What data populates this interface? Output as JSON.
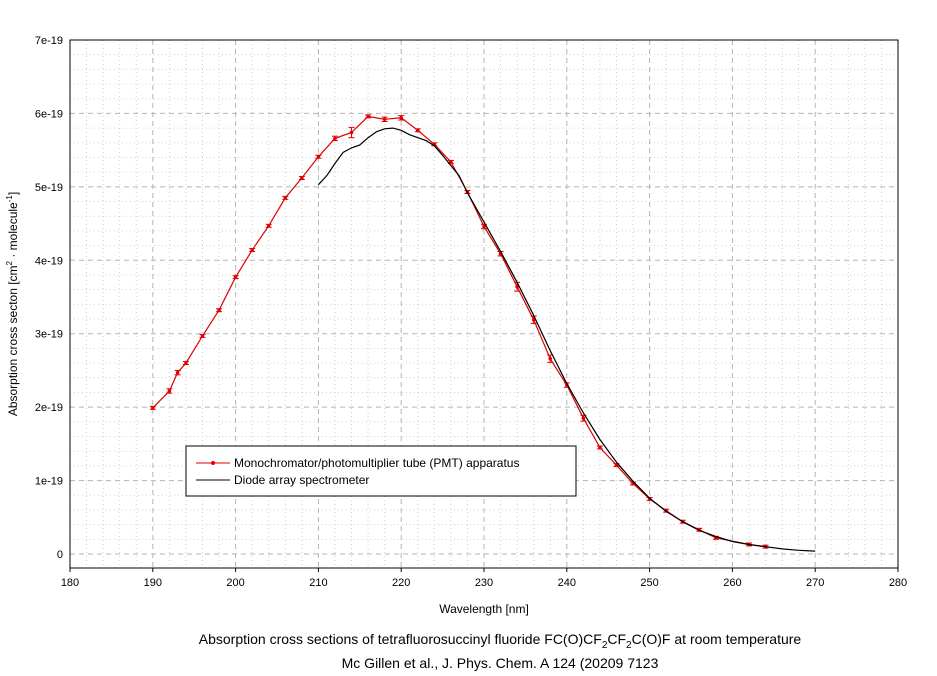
{
  "chart_data": {
    "type": "line",
    "xlabel": "Wavelength [nm]",
    "ylabel_parts": [
      "Absorption cross secton [cm",
      "2",
      " · molecule",
      "-1",
      "]"
    ],
    "xlim": [
      180,
      280
    ],
    "ylim": [
      0,
      7e-19
    ],
    "x_ticks": [
      "180",
      "190",
      "200",
      "210",
      "220",
      "230",
      "240",
      "250",
      "260",
      "270",
      "280"
    ],
    "y_ticks": [
      "0",
      "1e-19",
      "2e-19",
      "3e-19",
      "4e-19",
      "5e-19",
      "6e-19",
      "7e-19"
    ],
    "grid": true,
    "legend_position": "center-left",
    "series": [
      {
        "name": "Monochromator/photomultiplier tube (PMT) apparatus",
        "color": "#e00000",
        "marker": "dot-errorbar",
        "x": [
          190,
          192,
          193,
          194,
          196,
          198,
          200,
          202,
          204,
          206,
          208,
          210,
          212,
          214,
          216,
          218,
          220,
          222,
          224,
          226,
          228,
          230,
          232,
          234,
          236,
          238,
          240,
          242,
          244,
          246,
          248,
          250,
          252,
          254,
          256,
          258,
          262,
          264
        ],
        "y": [
          1.99,
          2.22,
          2.47,
          2.6,
          2.97,
          3.32,
          3.77,
          4.14,
          4.47,
          4.85,
          5.12,
          5.41,
          5.66,
          5.74,
          5.96,
          5.92,
          5.94,
          5.77,
          5.58,
          5.34,
          4.93,
          4.46,
          4.09,
          3.64,
          3.19,
          2.66,
          2.3,
          1.85,
          1.45,
          1.21,
          0.96,
          0.75,
          0.59,
          0.44,
          0.33,
          0.22,
          0.13,
          0.1
        ],
        "err": [
          0.02,
          0.03,
          0.03,
          0.02,
          0.02,
          0.02,
          0.02,
          0.02,
          0.02,
          0.02,
          0.02,
          0.02,
          0.03,
          0.07,
          0.02,
          0.03,
          0.03,
          0.02,
          0.02,
          0.02,
          0.02,
          0.03,
          0.03,
          0.06,
          0.05,
          0.05,
          0.03,
          0.04,
          0.02,
          0.02,
          0.02,
          0.02,
          0.02,
          0.02,
          0.02,
          0.02,
          0.02,
          0.02
        ],
        "y_unit_multiplier": 1e-19
      },
      {
        "name": "Diode array spectrometer",
        "color": "#000000",
        "marker": "none",
        "x": [
          210,
          211,
          212,
          213,
          214,
          215,
          216,
          217,
          218,
          219,
          220,
          221,
          222,
          223,
          224,
          225,
          226,
          227,
          228,
          230,
          232,
          234,
          236,
          238,
          240,
          242,
          244,
          246,
          248,
          250,
          252,
          254,
          256,
          258,
          260,
          262,
          264,
          266,
          268,
          270
        ],
        "y": [
          5.03,
          5.15,
          5.32,
          5.47,
          5.53,
          5.57,
          5.67,
          5.75,
          5.79,
          5.8,
          5.77,
          5.71,
          5.67,
          5.63,
          5.56,
          5.43,
          5.29,
          5.15,
          4.92,
          4.52,
          4.12,
          3.7,
          3.25,
          2.77,
          2.32,
          1.92,
          1.56,
          1.25,
          0.99,
          0.76,
          0.58,
          0.44,
          0.32,
          0.24,
          0.17,
          0.13,
          0.1,
          0.07,
          0.05,
          0.04
        ],
        "y_unit_multiplier": 1e-19
      }
    ]
  },
  "caption": {
    "line1_parts": [
      "Absorption cross sections of tetrafluorosuccinyl fluoride FC(O)CF",
      "2",
      "CF",
      "2",
      "C(O)F at room temperature"
    ],
    "line2": "Mc Gillen et al., J. Phys. Chem. A 124 (20209 7123"
  }
}
